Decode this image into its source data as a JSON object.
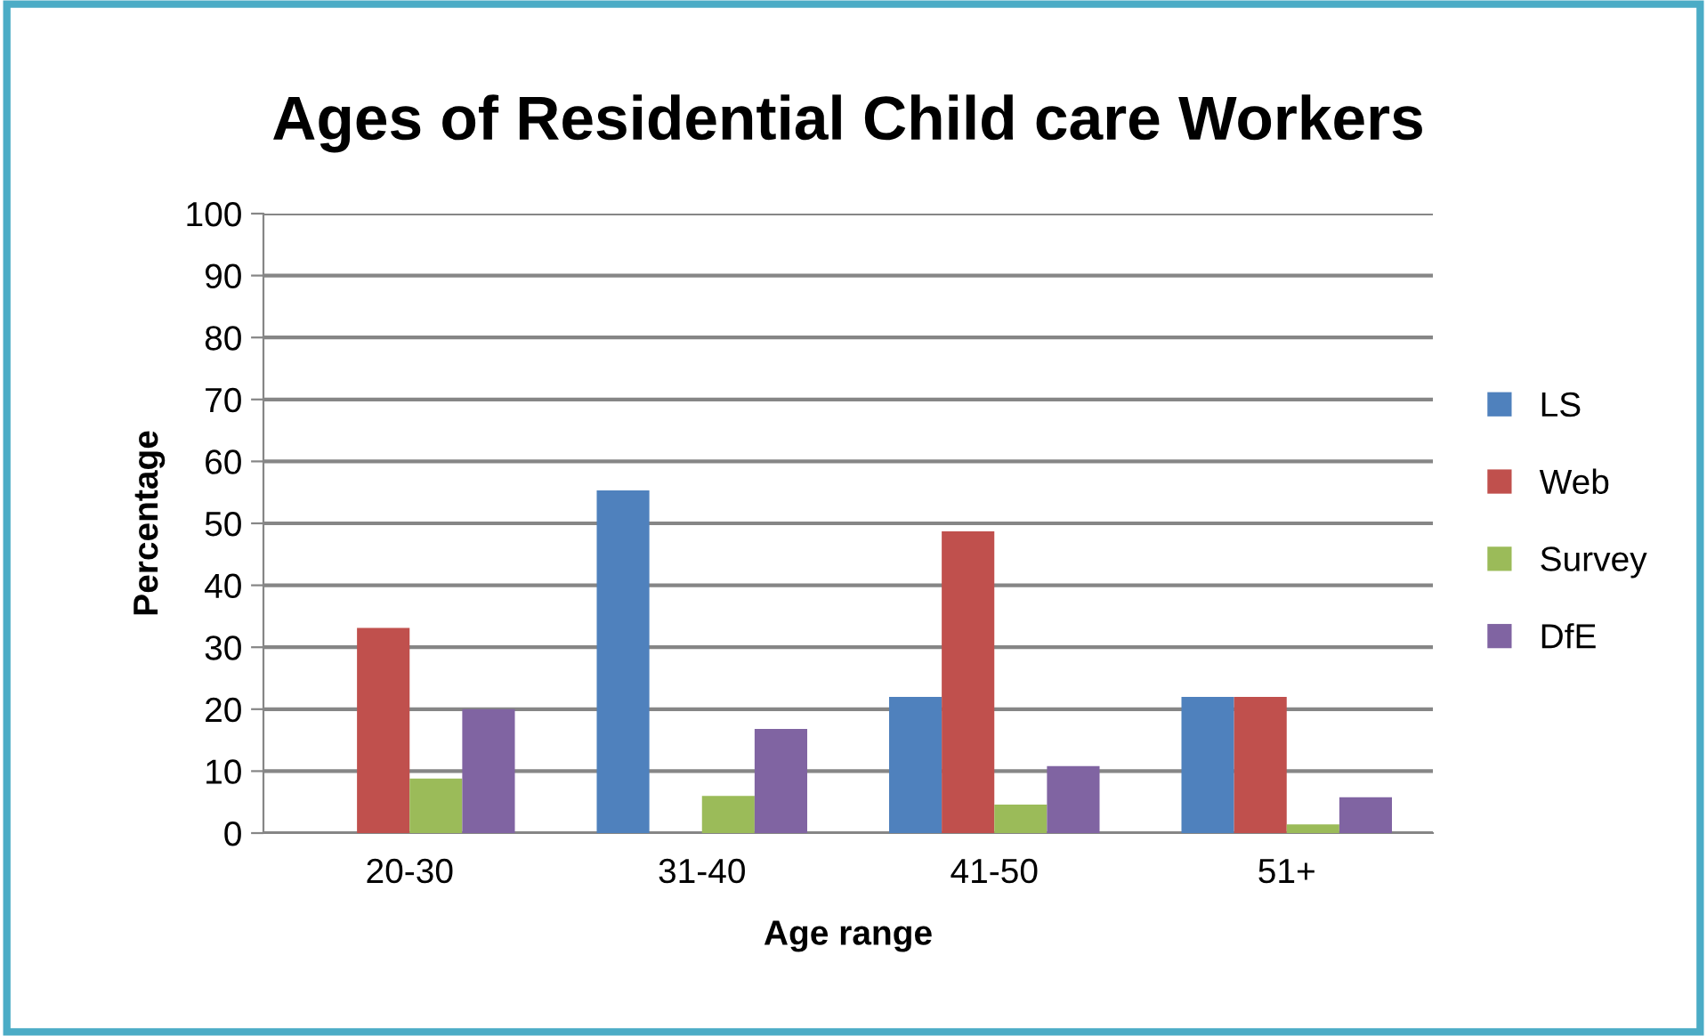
{
  "chart_data": {
    "type": "bar",
    "title": "Ages of Residential Child care Workers",
    "xlabel": "Age range",
    "ylabel": "Percentage",
    "categories": [
      "20-30",
      "31-40",
      "41-50",
      "51+"
    ],
    "series": [
      {
        "name": "LS",
        "color": "#4f81bd",
        "values": [
          0,
          55.3,
          22,
          22
        ]
      },
      {
        "name": "Web",
        "color": "#c0504d",
        "values": [
          33.1,
          0,
          48.7,
          22
        ]
      },
      {
        "name": "Survey",
        "color": "#9bbb59",
        "values": [
          8.8,
          6,
          4.6,
          1.4
        ]
      },
      {
        "name": "DfE",
        "color": "#8064a2",
        "values": [
          20,
          16.8,
          10.8,
          5.8
        ]
      }
    ],
    "ylim": [
      0,
      100
    ],
    "yticks": [
      0,
      10,
      20,
      30,
      40,
      50,
      60,
      70,
      80,
      90,
      100
    ],
    "grid": "y",
    "legend": "right"
  }
}
